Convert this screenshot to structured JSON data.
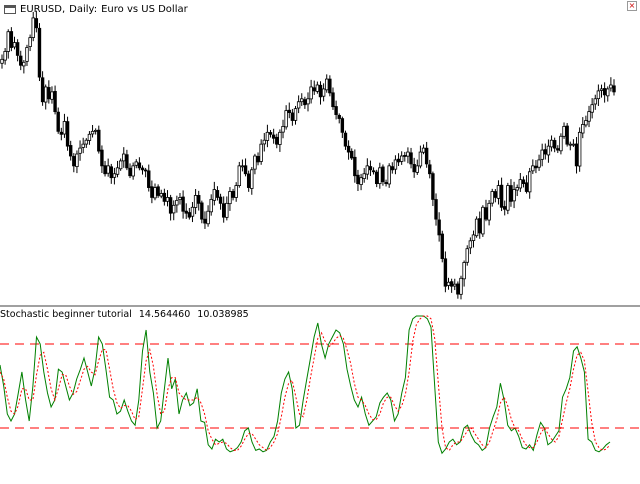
{
  "window": {
    "symbol": "EURUSD,",
    "timeframe": "Daily:",
    "description": "Euro vs US Dollar",
    "chart_icon": "chart-window-icon",
    "close_icon": "close-icon"
  },
  "indicator": {
    "name": "Stochastic beginner tutorial",
    "main_value": "14.564460",
    "signal_value": "10.038985"
  },
  "colors": {
    "candle": "#000000",
    "main_line": "#008000",
    "signal_line": "#ff0000",
    "levels": "#ff0000",
    "separator": "#808080"
  },
  "chart_data": [
    {
      "type": "candlestick",
      "symbol": "EURUSD",
      "timeframe": "Daily",
      "title": "EURUSD, Daily: Euro vs US Dollar",
      "close": [
        258,
        266,
        286,
        270,
        275,
        262,
        252,
        255,
        270,
        280,
        300,
        290,
        240,
        215,
        230,
        218,
        225,
        205,
        185,
        182,
        195,
        170,
        160,
        150,
        162,
        168,
        172,
        176,
        182,
        185,
        186,
        165,
        150,
        142,
        150,
        138,
        142,
        148,
        155,
        162,
        148,
        140,
        150,
        154,
        148,
        146,
        145,
        128,
        118,
        128,
        120,
        122,
        114,
        118,
        102,
        110,
        115,
        118,
        104,
        102,
        98,
        108,
        120,
        112,
        96,
        92,
        104,
        116,
        126,
        118,
        112,
        98,
        112,
        124,
        118,
        130,
        150,
        150,
        142,
        128,
        146,
        160,
        154,
        172,
        176,
        184,
        182,
        178,
        172,
        184,
        190,
        206,
        204,
        196,
        208,
        215,
        218,
        212,
        218,
        230,
        226,
        232,
        220,
        228,
        238,
        224,
        210,
        202,
        198,
        184,
        170,
        164,
        158,
        140,
        132,
        138,
        142,
        150,
        146,
        144,
        132,
        148,
        134,
        132,
        150,
        146,
        156,
        154,
        160,
        160,
        164,
        152,
        144,
        150,
        164,
        168,
        152,
        142,
        116,
        96,
        80,
        56,
        28,
        32,
        28,
        30,
        20,
        36,
        52,
        66,
        74,
        80,
        96,
        82,
        108,
        96,
        112,
        124,
        118,
        130,
        108,
        106,
        130,
        114,
        126,
        128,
        136,
        132,
        124,
        144,
        150,
        148,
        156,
        166,
        162,
        170,
        176,
        168,
        166,
        180,
        190,
        172,
        172,
        172,
        150,
        184,
        192,
        196,
        205,
        212,
        218,
        226,
        228,
        222,
        228,
        232,
        225
      ],
      "price_range": "unlabeled"
    },
    {
      "type": "line",
      "title": "Stochastic beginner tutorial",
      "series": [
        {
          "name": "main",
          "color": "#008000",
          "current_value": 14.56446,
          "values": [
            65,
            50,
            30,
            25,
            30,
            45,
            60,
            40,
            25,
            50,
            85,
            80,
            60,
            45,
            35,
            40,
            62,
            60,
            50,
            40,
            45,
            55,
            62,
            70,
            60,
            50,
            62,
            85,
            80,
            62,
            42,
            40,
            30,
            32,
            40,
            32,
            25,
            22,
            40,
            75,
            90,
            60,
            45,
            20,
            25,
            48,
            70,
            48,
            55,
            30,
            40,
            45,
            36,
            38,
            48,
            25,
            24,
            8,
            5,
            12,
            10,
            12,
            5,
            3,
            4,
            6,
            10,
            18,
            20,
            10,
            4,
            5,
            3,
            4,
            10,
            14,
            25,
            45,
            55,
            60,
            48,
            20,
            22,
            40,
            55,
            70,
            85,
            95,
            80,
            70,
            80,
            85,
            90,
            88,
            80,
            62,
            50,
            40,
            35,
            42,
            30,
            22,
            25,
            28,
            38,
            42,
            45,
            40,
            25,
            30,
            45,
            56,
            90,
            98,
            100,
            100,
            100,
            98,
            92,
            50,
            10,
            2,
            5,
            10,
            12,
            8,
            10,
            20,
            22,
            15,
            10,
            8,
            4,
            6,
            20,
            28,
            35,
            52,
            40,
            22,
            18,
            20,
            14,
            6,
            5,
            8,
            4,
            15,
            24,
            20,
            8,
            10,
            14,
            18,
            42,
            48,
            56,
            75,
            78,
            70,
            60,
            12,
            10,
            4,
            3,
            5,
            8,
            10
          ],
          "estimated": true
        },
        {
          "name": "signal",
          "color": "#ff0000",
          "current_value": 10.038985,
          "values": [
            60,
            55,
            42,
            32,
            30,
            36,
            48,
            48,
            40,
            40,
            58,
            72,
            74,
            62,
            48,
            40,
            48,
            58,
            58,
            50,
            44,
            46,
            54,
            62,
            64,
            60,
            58,
            68,
            76,
            76,
            62,
            48,
            38,
            34,
            36,
            36,
            32,
            26,
            28,
            48,
            68,
            76,
            64,
            44,
            30,
            32,
            48,
            56,
            56,
            45,
            42,
            40,
            40,
            40,
            42,
            38,
            30,
            18,
            12,
            8,
            9,
            10,
            9,
            6,
            4,
            4,
            7,
            12,
            16,
            16,
            12,
            8,
            6,
            4,
            6,
            10,
            16,
            28,
            42,
            52,
            54,
            42,
            30,
            28,
            40,
            56,
            70,
            84,
            88,
            82,
            78,
            80,
            84,
            86,
            84,
            76,
            66,
            52,
            42,
            40,
            36,
            30,
            26,
            26,
            30,
            38,
            42,
            42,
            36,
            32,
            36,
            44,
            60,
            82,
            94,
            98,
            100,
            100,
            98,
            84,
            52,
            20,
            6,
            4,
            8,
            10,
            10,
            14,
            18,
            20,
            16,
            12,
            8,
            6,
            10,
            18,
            26,
            38,
            42,
            36,
            26,
            20,
            18,
            12,
            8,
            6,
            6,
            10,
            16,
            20,
            16,
            12,
            10,
            14,
            26,
            38,
            48,
            62,
            72,
            74,
            68,
            46,
            24,
            10,
            6,
            4,
            5,
            8
          ],
          "estimated": true
        }
      ],
      "levels": [
        80,
        20
      ],
      "ylim": [
        0,
        100
      ]
    }
  ]
}
